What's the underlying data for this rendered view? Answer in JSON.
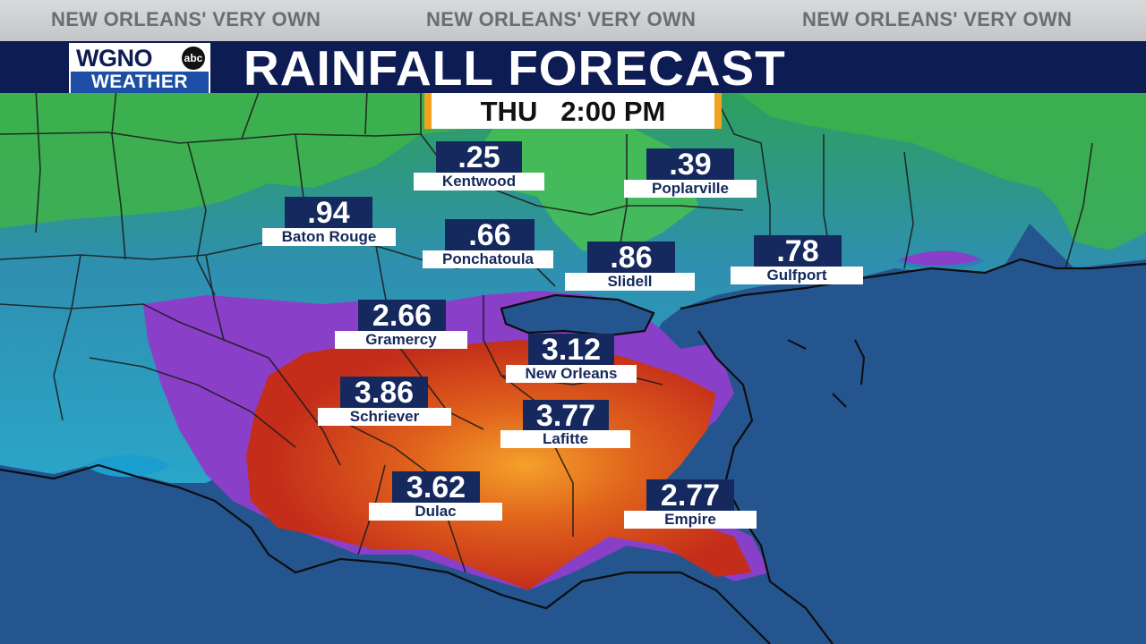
{
  "ticker": [
    "NEW ORLEANS' VERY OWN",
    "NEW ORLEANS' VERY OWN",
    "NEW ORLEANS' VERY OWN"
  ],
  "logo": {
    "station": "WGNO",
    "network": "abc",
    "sub": "WEATHER"
  },
  "title": "RAINFALL FORECAST",
  "time": {
    "day": "THU",
    "clock": "2:00 PM"
  },
  "cities": [
    {
      "name": "Kentwood",
      "value": ".25"
    },
    {
      "name": "Poplarville",
      "value": ".39"
    },
    {
      "name": "Baton Rouge",
      "value": ".94"
    },
    {
      "name": "Ponchatoula",
      "value": ".66"
    },
    {
      "name": "Slidell",
      "value": ".86"
    },
    {
      "name": "Gulfport",
      "value": ".78"
    },
    {
      "name": "Gramercy",
      "value": "2.66"
    },
    {
      "name": "New Orleans",
      "value": "3.12"
    },
    {
      "name": "Schriever",
      "value": "3.86"
    },
    {
      "name": "Lafitte",
      "value": "3.77"
    },
    {
      "name": "Dulac",
      "value": "3.62"
    },
    {
      "name": "Empire",
      "value": "2.77"
    }
  ],
  "colors": {
    "banner": "#0e1c54",
    "label_dark": "#15295e",
    "time_accent": "#f3a11e",
    "water": "#24558f"
  }
}
